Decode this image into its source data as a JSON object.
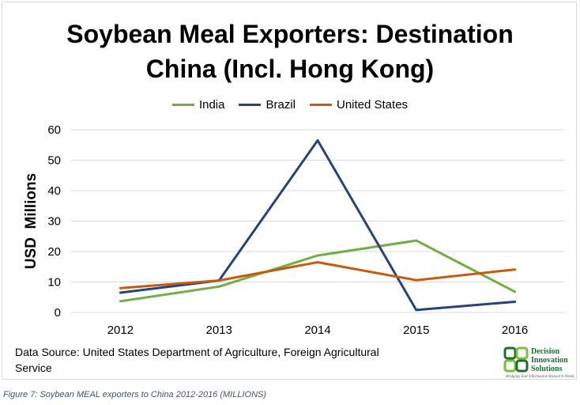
{
  "chart_data": {
    "type": "line",
    "title_line1": "Soybean Meal Exporters: Destination",
    "title_line2": "China (Incl. Hong Kong)",
    "ylabel": "USD  Millions",
    "xlabel": "",
    "categories": [
      "2012",
      "2013",
      "2014",
      "2015",
      "2016"
    ],
    "ylim": [
      0,
      60
    ],
    "yticks": [
      0,
      10,
      20,
      30,
      40,
      50,
      60
    ],
    "grid": true,
    "legend_position": "top",
    "series": [
      {
        "name": "India",
        "color": "#70ad47",
        "values": [
          3.7,
          8.5,
          18.7,
          23.6,
          6.8
        ]
      },
      {
        "name": "Brazil",
        "color": "#264478",
        "values": [
          6.5,
          10.5,
          56.5,
          0.8,
          3.5
        ]
      },
      {
        "name": "United States",
        "color": "#c55a11",
        "values": [
          8.0,
          10.5,
          16.5,
          10.6,
          14.1
        ]
      }
    ]
  },
  "source_note": "Data Source: United States Department of Agriculture, Foreign Agricultural Service",
  "logo": {
    "line1": "Decision",
    "line2": "Innovation",
    "line3": "Solutions",
    "tagline": "Bridging Your Information Research Needs"
  },
  "caption": "Figure 7: Soybean MEAL exporters to China 2012-2016 (MILLIONS)"
}
